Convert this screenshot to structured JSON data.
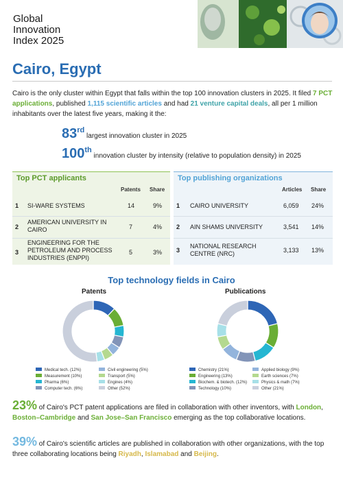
{
  "header": {
    "title_lines": [
      "Global",
      "Innovation",
      "Index 2025"
    ]
  },
  "city": "Cairo, Egypt",
  "intro": {
    "t1": "Cairo is the only cluster within Egypt that falls within the top 100 innovation clusters in 2025. It filed ",
    "pct": "7 PCT applications",
    "t2": ", published ",
    "articles": "1,115 scientific articles",
    "t3": " and had ",
    "vc": "21 venture capital deals",
    "t4": ", all per 1 million inhabitants over the latest five years, making it the:"
  },
  "ranks": [
    {
      "num": "83",
      "suffix": "rd",
      "text": "largest innovation cluster in 2025"
    },
    {
      "num": "100",
      "suffix": "th",
      "text": "innovation cluster by intensity (relative to population density) in 2025"
    }
  ],
  "pct_table": {
    "title": "Top PCT applicants",
    "col1": "Patents",
    "col2": "Share",
    "rows": [
      {
        "rank": "1",
        "name": "SI-WARE SYSTEMS",
        "value": "14",
        "share": "9%"
      },
      {
        "rank": "2",
        "name": "AMERICAN UNIVERSITY IN CAIRO",
        "value": "7",
        "share": "4%"
      },
      {
        "rank": "3",
        "name": "ENGINEERING FOR THE PETROLEUM AND PROCESS INDUSTRIES (ENPPI)",
        "value": "5",
        "share": "3%"
      }
    ]
  },
  "pub_table": {
    "title": "Top publishing organizations",
    "col1": "Articles",
    "col2": "Share",
    "rows": [
      {
        "rank": "1",
        "name": "CAIRO UNIVERSITY",
        "value": "6,059",
        "share": "24%"
      },
      {
        "rank": "2",
        "name": "AIN SHAMS UNIVERSITY",
        "value": "3,541",
        "share": "14%"
      },
      {
        "rank": "3",
        "name": "NATIONAL RESEARCH CENTRE (NRC)",
        "value": "3,133",
        "share": "13%"
      }
    ]
  },
  "fields_title": "Top technology fields in Cairo",
  "chart_data": [
    {
      "type": "pie",
      "title": "Patents",
      "categories": [
        "Medical tech.",
        "Measurement",
        "Pharma",
        "Computer tech.",
        "Civil engineering",
        "Transport",
        "Engines",
        "Other"
      ],
      "values": [
        12,
        10,
        6,
        6,
        5,
        5,
        4,
        52
      ],
      "legend": [
        "Medical tech. (12%)",
        "Measurement (10%)",
        "Pharma (6%)",
        "Computer tech. (6%)",
        "Civil engineering (5%)",
        "Transport (5%)",
        "Engines (4%)",
        "Other (52%)"
      ],
      "colors": [
        "#2e66b6",
        "#6aae35",
        "#25b6d2",
        "#8294b8",
        "#93b4dc",
        "#b4d98f",
        "#a7e0e8",
        "#c9cfdc"
      ]
    },
    {
      "type": "pie",
      "title": "Publications",
      "categories": [
        "Chemistry",
        "Engineering",
        "Biochem. & biotech.",
        "Technology",
        "Applied biology",
        "Earth sciences",
        "Physics & math",
        "Other"
      ],
      "values": [
        21,
        13,
        12,
        10,
        9,
        7,
        7,
        21
      ],
      "legend": [
        "Chemistry (21%)",
        "Engineering (13%)",
        "Biochem. & biotech. (12%)",
        "Technology (10%)",
        "Applied biology (9%)",
        "Earth sciences (7%)",
        "Physics & math (7%)",
        "Other (21%)"
      ],
      "colors": [
        "#2e66b6",
        "#6aae35",
        "#25b6d2",
        "#8294b8",
        "#93b4dc",
        "#b4d98f",
        "#a7e0e8",
        "#c9cfdc"
      ]
    }
  ],
  "stat1": {
    "pct": "23%",
    "t1": " of Cairo's PCT patent applications are filed in collaboration with other inventors, with ",
    "l1": "London",
    "t2": ", ",
    "l2": "Boston–Cambridge",
    "t3": " and ",
    "l3": "San Jose–San Francisco",
    "t4": " emerging as the top collaborative locations."
  },
  "stat2": {
    "pct": "39%",
    "t1": " of Cairo's scientific articles are published in collaboration with other organizations, with the top three collaborating locations being ",
    "l1": "Riyadh",
    "t2": ", ",
    "l2": "Islamabad",
    "t3": " and ",
    "l3": "Beijing",
    "t4": "."
  }
}
